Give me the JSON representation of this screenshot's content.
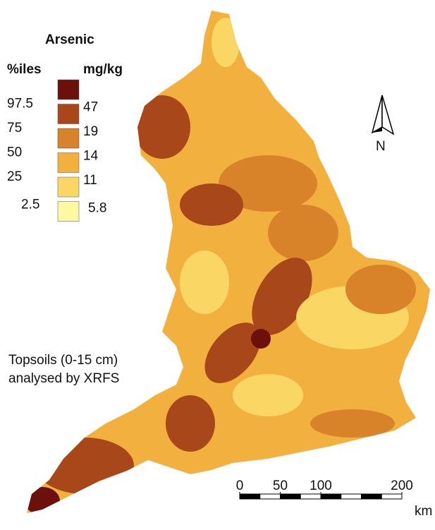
{
  "legend": {
    "title": "Arsenic",
    "percentile_header": "%iles",
    "unit_header": "mg/kg",
    "colors": [
      "#6b100b",
      "#a8481a",
      "#d8832a",
      "#f2b03e",
      "#fad764",
      "#fdf9a2"
    ],
    "percentiles": [
      97.5,
      75,
      50,
      25,
      2.5
    ],
    "concentrations": [
      47,
      19,
      14,
      11,
      5.8
    ]
  },
  "north": "N",
  "note": [
    "Topsoils (0-15 cm)",
    "analysed by XRFS"
  ],
  "scale_bar": {
    "ticks": [
      0,
      50,
      100,
      200
    ],
    "unit": "km"
  }
}
